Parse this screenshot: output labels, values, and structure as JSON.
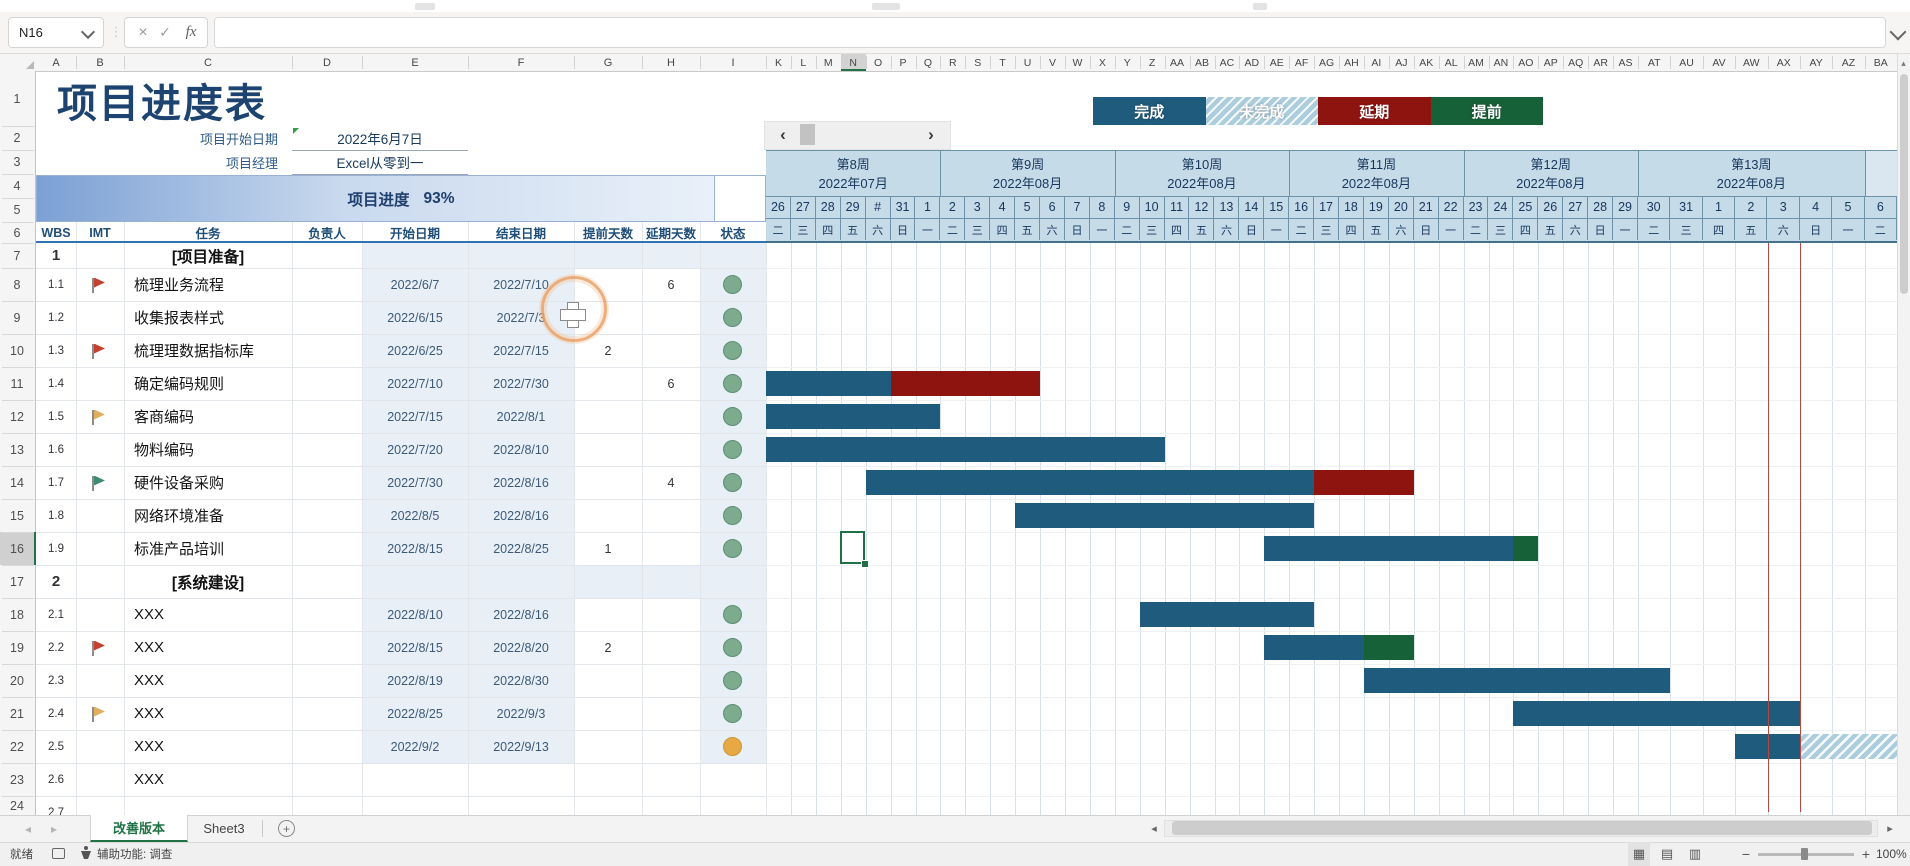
{
  "window": {
    "name_box": "N16",
    "formula_value": ""
  },
  "icons": {
    "cancel": "×",
    "confirm": "✓",
    "fx": "fx",
    "spin_left": "‹",
    "spin_right": "›",
    "tab_prev": "◂",
    "tab_next": "▸",
    "scroll_up": "▴",
    "scroll_left": "◂",
    "scroll_right": "▸",
    "add_sheet": "+",
    "view_normal": "▦",
    "view_layout": "▤",
    "view_break": "▥",
    "zoom_out": "−",
    "zoom_in": "+"
  },
  "header": {
    "title": "项目进度表",
    "start_label": "项目开始日期",
    "start_value": "2022年6月7日",
    "manager_label": "项目经理",
    "manager_value": "Excel从零到一",
    "progress_label": "项目进度",
    "progress_value": "93%",
    "progress_percent": 93
  },
  "legend": [
    {
      "label": "完成",
      "kind": "done"
    },
    {
      "label": "未完成",
      "kind": "todo"
    },
    {
      "label": "延期",
      "kind": "delay"
    },
    {
      "label": "提前",
      "kind": "early"
    }
  ],
  "colors": {
    "done": "#1f5b7c",
    "todo_base": "#abcdde",
    "delay": "#8e1410",
    "early": "#176138",
    "accent_green": "#1e7145",
    "today_line": "#b04a42",
    "band_bg": "#c6dbe8",
    "band_bg_light": "#dae7f1",
    "band_border": "#6d93ab",
    "band_text": "#17365d",
    "header_navy": "#1f4e79",
    "date_text": "#3c5a78",
    "tint": "#e9eff7",
    "flag_red": "#c4402f",
    "flag_yellow": "#dfae5f",
    "flag_teal": "#3e8a74",
    "flag_pole": "#8c8c8c",
    "status_green": "#7cab8e",
    "status_green_border": "#5c8f74",
    "status_orange": "#e8a944",
    "status_orange_border": "#c9982f",
    "tab_green": "#217346",
    "progress_border": "#98b1d4",
    "row6_line": "#2e74b5"
  },
  "table_headers": [
    "WBS",
    "IMT",
    "任务",
    "负责人",
    "开始日期",
    "结束日期",
    "提前天数",
    "延期天数",
    "状态"
  ],
  "tasks": [
    {
      "row": 7,
      "wbs": "1",
      "flag": null,
      "name": "[项目准备]",
      "start": "",
      "end": "",
      "early": "",
      "late": "",
      "status": null,
      "section": true,
      "bars": []
    },
    {
      "row": 8,
      "wbs": "1.1",
      "flag": "red",
      "name": "梳理业务流程",
      "start": "2022/6/7",
      "end": "2022/7/10",
      "early": "",
      "late": "6",
      "status": "green",
      "section": false,
      "bars": []
    },
    {
      "row": 9,
      "wbs": "1.2",
      "flag": null,
      "name": "收集报表样式",
      "start": "2022/6/15",
      "end": "2022/7/3",
      "early": "",
      "late": "",
      "status": "green",
      "section": false,
      "bars": []
    },
    {
      "row": 10,
      "wbs": "1.3",
      "flag": "red",
      "name": "梳理理数据指标库",
      "start": "2022/6/25",
      "end": "2022/7/15",
      "early": "2",
      "late": "",
      "status": "green",
      "section": false,
      "bars": []
    },
    {
      "row": 11,
      "wbs": "1.4",
      "flag": null,
      "name": "确定编码规则",
      "start": "2022/7/10",
      "end": "2022/7/30",
      "early": "",
      "late": "6",
      "status": "green",
      "section": false,
      "bars": [
        {
          "kind": "done",
          "from": 0,
          "to": 5
        },
        {
          "kind": "delay",
          "from": 5,
          "to": 11
        }
      ]
    },
    {
      "row": 12,
      "wbs": "1.5",
      "flag": "yellow",
      "name": "客商编码",
      "start": "2022/7/15",
      "end": "2022/8/1",
      "early": "",
      "late": "",
      "status": "green",
      "section": false,
      "bars": [
        {
          "kind": "done",
          "from": 0,
          "to": 7
        }
      ]
    },
    {
      "row": 13,
      "wbs": "1.6",
      "flag": null,
      "name": "物料编码",
      "start": "2022/7/20",
      "end": "2022/8/10",
      "early": "",
      "late": "",
      "status": "green",
      "section": false,
      "bars": [
        {
          "kind": "done",
          "from": 0,
          "to": 16
        }
      ]
    },
    {
      "row": 14,
      "wbs": "1.7",
      "flag": "teal",
      "name": "硬件设备采购",
      "start": "2022/7/30",
      "end": "2022/8/16",
      "early": "",
      "late": "4",
      "status": "green",
      "section": false,
      "bars": [
        {
          "kind": "done",
          "from": 4,
          "to": 22
        },
        {
          "kind": "delay",
          "from": 22,
          "to": 26
        }
      ]
    },
    {
      "row": 15,
      "wbs": "1.8",
      "flag": null,
      "name": "网络环境准备",
      "start": "2022/8/5",
      "end": "2022/8/16",
      "early": "",
      "late": "",
      "status": "green",
      "section": false,
      "bars": [
        {
          "kind": "done",
          "from": 10,
          "to": 22
        }
      ]
    },
    {
      "row": 16,
      "wbs": "1.9",
      "flag": null,
      "name": "标准产品培训",
      "start": "2022/8/15",
      "end": "2022/8/25",
      "early": "1",
      "late": "",
      "status": "green",
      "section": false,
      "bars": [
        {
          "kind": "done",
          "from": 20,
          "to": 30
        },
        {
          "kind": "early",
          "from": 30,
          "to": 31
        }
      ]
    },
    {
      "row": 17,
      "wbs": "2",
      "flag": null,
      "name": "[系统建设]",
      "start": "",
      "end": "",
      "early": "",
      "late": "",
      "status": null,
      "section": true,
      "bars": []
    },
    {
      "row": 18,
      "wbs": "2.1",
      "flag": null,
      "name": "XXX",
      "start": "2022/8/10",
      "end": "2022/8/16",
      "early": "",
      "late": "",
      "status": "green",
      "section": false,
      "bars": [
        {
          "kind": "done",
          "from": 15,
          "to": 22
        }
      ]
    },
    {
      "row": 19,
      "wbs": "2.2",
      "flag": "red",
      "name": "XXX",
      "start": "2022/8/15",
      "end": "2022/8/20",
      "early": "2",
      "late": "",
      "status": "green",
      "section": false,
      "bars": [
        {
          "kind": "done",
          "from": 20,
          "to": 24
        },
        {
          "kind": "early",
          "from": 24,
          "to": 26
        }
      ]
    },
    {
      "row": 20,
      "wbs": "2.3",
      "flag": null,
      "name": "XXX",
      "start": "2022/8/19",
      "end": "2022/8/30",
      "early": "",
      "late": "",
      "status": "green",
      "section": false,
      "bars": [
        {
          "kind": "done",
          "from": 24,
          "to": 36
        }
      ]
    },
    {
      "row": 21,
      "wbs": "2.4",
      "flag": "yellow",
      "name": "XXX",
      "start": "2022/8/25",
      "end": "2022/9/3",
      "early": "",
      "late": "",
      "status": "green",
      "section": false,
      "bars": [
        {
          "kind": "done",
          "from": 30,
          "to": 40
        }
      ]
    },
    {
      "row": 22,
      "wbs": "2.5",
      "flag": null,
      "name": "XXX",
      "start": "2022/9/2",
      "end": "2022/9/13",
      "early": "",
      "late": "",
      "status": "orange",
      "section": false,
      "bars": [
        {
          "kind": "done",
          "from": 38,
          "to": 40
        },
        {
          "kind": "todo",
          "from": 40,
          "to": 43
        }
      ]
    },
    {
      "row": 23,
      "wbs": "2.6",
      "flag": null,
      "name": "XXX",
      "start": "",
      "end": "",
      "early": "",
      "late": "",
      "status": null,
      "section": false,
      "bars": []
    },
    {
      "row": 24,
      "wbs": "2.7",
      "flag": null,
      "name": "",
      "start": "",
      "end": "",
      "early": "",
      "late": "",
      "status": null,
      "section": false,
      "bars": []
    }
  ],
  "gantt": {
    "weeks": [
      {
        "week": "第8周",
        "month": "2022年07月"
      },
      {
        "week": "第9周",
        "month": "2022年08月"
      },
      {
        "week": "第10周",
        "month": "2022年08月"
      },
      {
        "week": "第11周",
        "month": "2022年08月"
      },
      {
        "week": "第12周",
        "month": "2022年08月"
      },
      {
        "week": "第13周",
        "month": "2022年08月"
      }
    ],
    "days": [
      "26",
      "27",
      "28",
      "29",
      "#",
      "31",
      "1",
      "2",
      "3",
      "4",
      "5",
      "6",
      "7",
      "8",
      "9",
      "10",
      "11",
      "12",
      "13",
      "14",
      "15",
      "16",
      "17",
      "18",
      "19",
      "20",
      "21",
      "22",
      "23",
      "24",
      "25",
      "26",
      "27",
      "28",
      "29",
      "30",
      "31",
      "1",
      "2",
      "3",
      "4",
      "5",
      "6"
    ],
    "weekdays": [
      "二",
      "三",
      "四",
      "五",
      "六",
      "日",
      "一",
      "二",
      "三",
      "四",
      "五",
      "六",
      "日",
      "一",
      "二",
      "三",
      "四",
      "五",
      "六",
      "日",
      "一",
      "二",
      "三",
      "四",
      "五",
      "六",
      "日",
      "一",
      "二",
      "三",
      "四",
      "五",
      "六",
      "日",
      "一",
      "二",
      "三",
      "四",
      "五",
      "六",
      "日",
      "一",
      "二"
    ],
    "today_boundaries": [
      39,
      40
    ],
    "selected_cell": {
      "ref": "N16",
      "day": 3,
      "row": 16
    }
  },
  "columns": {
    "left": [
      "A",
      "B",
      "C",
      "D",
      "E",
      "F",
      "G",
      "H",
      "I"
    ],
    "gantt": [
      "K",
      "L",
      "M",
      "N",
      "O",
      "P",
      "Q",
      "R",
      "S",
      "T",
      "U",
      "V",
      "W",
      "X",
      "Y",
      "Z",
      "AA",
      "AB",
      "AC",
      "AD",
      "AE",
      "AF",
      "AG",
      "AH",
      "AI",
      "AJ",
      "AK",
      "AL",
      "AM",
      "AN",
      "AO",
      "AP",
      "AQ",
      "AR",
      "AS",
      "AT",
      "AU",
      "AV",
      "AW",
      "AX",
      "AY",
      "AZ",
      "BA"
    ],
    "selected": "N"
  },
  "row_numbers": [
    "1",
    "2",
    "3",
    "4",
    "5",
    "6",
    "7",
    "8",
    "9",
    "10",
    "11",
    "12",
    "13",
    "14",
    "15",
    "16",
    "17",
    "18",
    "19",
    "20",
    "21",
    "22",
    "23",
    "24"
  ],
  "tabs": {
    "sheets": [
      {
        "label": "改善版本",
        "active": true
      },
      {
        "label": "Sheet3",
        "active": false
      }
    ]
  },
  "status_bar": {
    "ready": "就绪",
    "accessibility": "辅助功能: 调查",
    "zoom": "100%"
  }
}
